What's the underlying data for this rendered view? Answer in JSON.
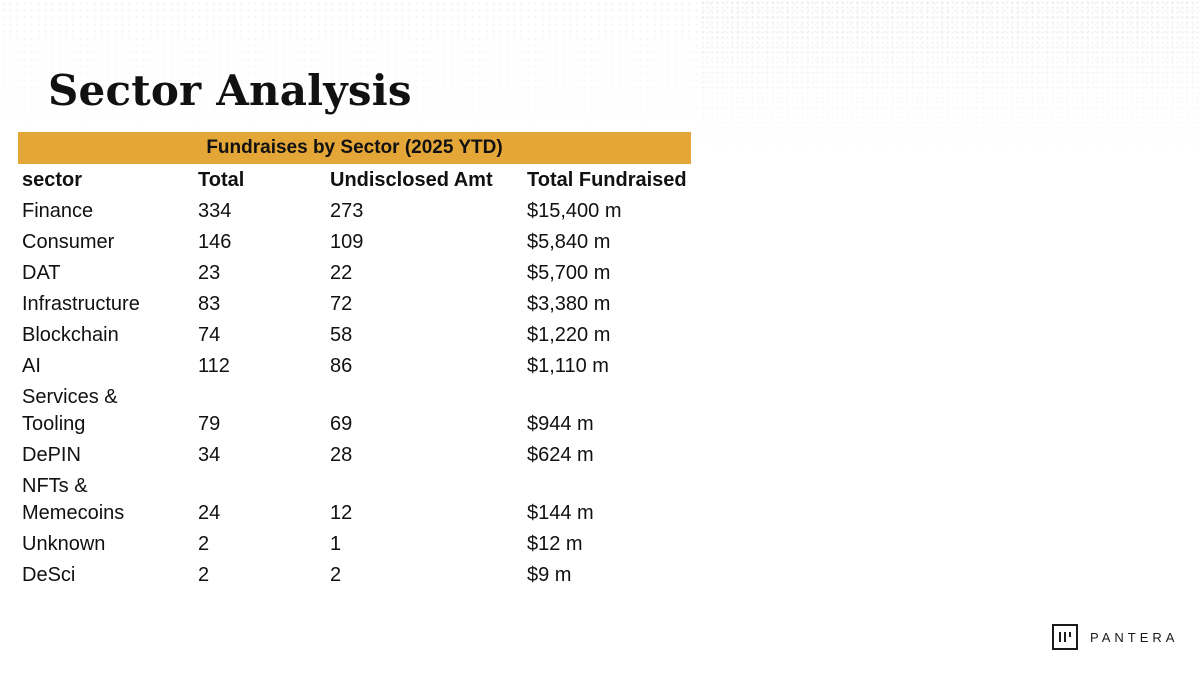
{
  "slide": {
    "title": "Sector Analysis"
  },
  "table": {
    "title": "Fundraises by Sector (2025 YTD)",
    "headers": {
      "sector": "sector",
      "total": "Total",
      "undisclosed": "Undisclosed Amt",
      "fundraised": "Total Fundraised"
    },
    "rows": [
      {
        "sector": "Finance",
        "total": "334",
        "undisclosed": "273",
        "fundraised": "$15,400 m"
      },
      {
        "sector": "Consumer",
        "total": "146",
        "undisclosed": "109",
        "fundraised": "$5,840 m"
      },
      {
        "sector": "DAT",
        "total": "23",
        "undisclosed": "22",
        "fundraised": "$5,700 m"
      },
      {
        "sector": "Infrastructure",
        "total": "83",
        "undisclosed": "72",
        "fundraised": "$3,380 m"
      },
      {
        "sector": "Blockchain",
        "total": "74",
        "undisclosed": "58",
        "fundraised": "$1,220 m"
      },
      {
        "sector": "AI",
        "total": "112",
        "undisclosed": "86",
        "fundraised": "$1,110 m"
      },
      {
        "sector": "Services & Tooling",
        "total": "79",
        "undisclosed": "69",
        "fundraised": "$944 m"
      },
      {
        "sector": "DePIN",
        "total": "34",
        "undisclosed": "28",
        "fundraised": "$624 m"
      },
      {
        "sector": "NFTs & Memecoins",
        "total": "24",
        "undisclosed": "12",
        "fundraised": "$144 m"
      },
      {
        "sector": "Unknown",
        "total": "2",
        "undisclosed": "1",
        "fundraised": "$12 m"
      },
      {
        "sector": "DeSci",
        "total": "2",
        "undisclosed": "2",
        "fundraised": "$9 m"
      }
    ]
  },
  "brand": {
    "name": "PANTERA",
    "logo_icon": "pantera-logo-icon",
    "accent_color": "#e5a638"
  }
}
